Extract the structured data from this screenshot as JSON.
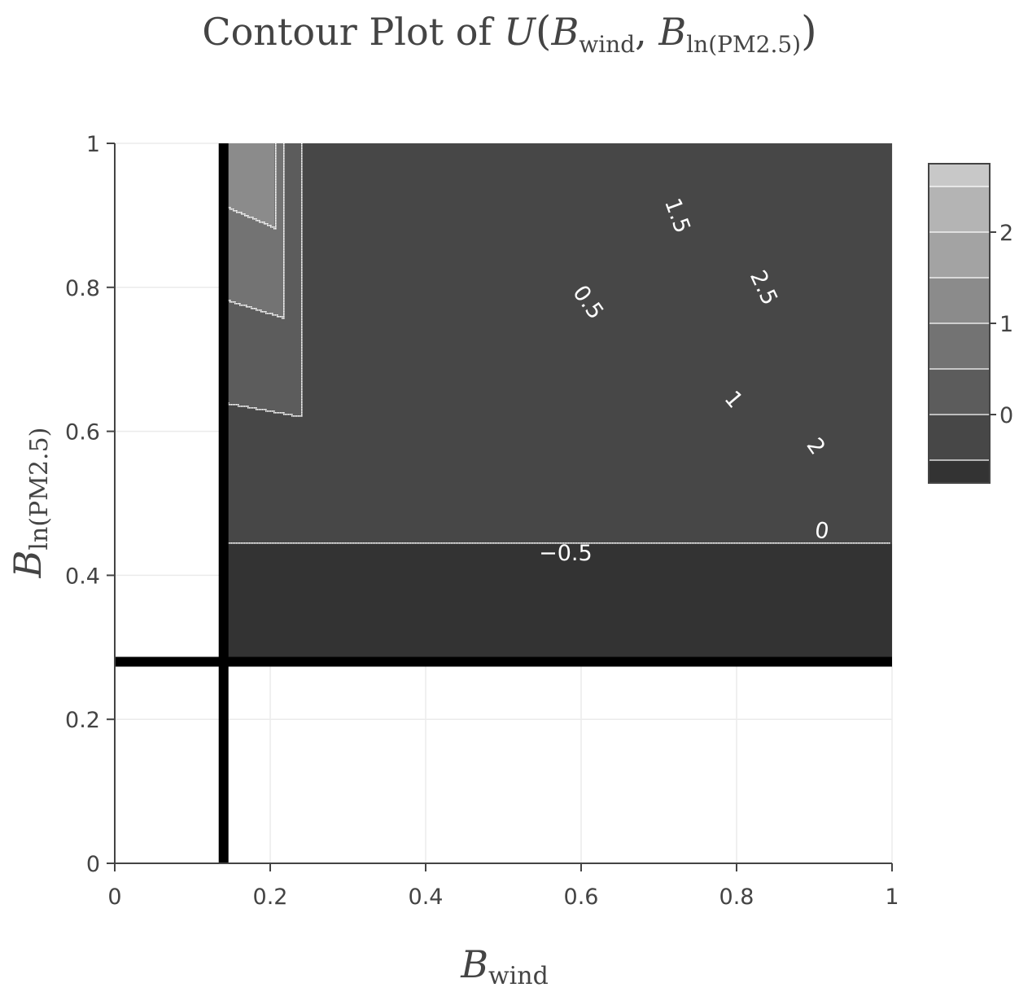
{
  "chart_data": {
    "type": "contour",
    "title": {
      "prefix": "Contour Plot of ",
      "func": "U",
      "var1_base": "B",
      "var1_sub": "wind",
      "var2_base": "B",
      "var2_sub": "ln(PM2.5)"
    },
    "xlabel": {
      "base": "B",
      "sub": "wind"
    },
    "ylabel": {
      "base": "B",
      "sub": "ln(PM2.5)"
    },
    "xlim": [
      0,
      1
    ],
    "ylim": [
      0,
      1
    ],
    "x_ticks": [
      0,
      0.2,
      0.4,
      0.6,
      0.8,
      1
    ],
    "x_tick_labels": [
      "0",
      "0.2",
      "0.4",
      "0.6",
      "0.8",
      "1"
    ],
    "y_ticks": [
      0,
      0.2,
      0.4,
      0.6,
      0.8,
      1
    ],
    "y_tick_labels": [
      "0",
      "0.2",
      "0.4",
      "0.6",
      "0.8",
      "1"
    ],
    "grid": true,
    "contour_region": {
      "x_min": 0.14,
      "y_min": 0.28,
      "x_max": 1,
      "y_max": 1
    },
    "contour_levels": [
      -0.5,
      0,
      0.5,
      1,
      1.5,
      2,
      2.5
    ],
    "contour_labels": [
      {
        "text": "−0.5",
        "level": -0.5,
        "at": [
          0.58,
          0.432
        ]
      },
      {
        "text": "0",
        "level": 0,
        "at": [
          0.91,
          0.463
        ]
      },
      {
        "text": "0.5",
        "level": 0.5,
        "at": [
          0.61,
          0.78
        ]
      },
      {
        "text": "1",
        "level": 1,
        "at": [
          0.797,
          0.645
        ]
      },
      {
        "text": "1.5",
        "level": 1.5,
        "at": [
          0.725,
          0.9
        ]
      },
      {
        "text": "2",
        "level": 2,
        "at": [
          0.903,
          0.58
        ]
      },
      {
        "text": "2.5",
        "level": 2.5,
        "at": [
          0.836,
          0.8
        ]
      }
    ],
    "fill_colors": [
      "#333333",
      "#474747",
      "#5c5c5c",
      "#737373",
      "#8b8b8b",
      "#a3a3a3",
      "#b4b4b4",
      "#c8c8c8"
    ],
    "reference_lines": [
      {
        "orientation": "vertical",
        "value": 0.14
      },
      {
        "orientation": "horizontal",
        "value": 0.28
      }
    ],
    "colorbar": {
      "tick_values": [
        0,
        1,
        2
      ],
      "tick_labels": [
        "0",
        "1",
        "2"
      ],
      "range": [
        -0.75,
        2.75
      ],
      "segment_edges": [
        -0.75,
        -0.5,
        0,
        0.5,
        1,
        1.5,
        2,
        2.5,
        2.75
      ],
      "segment_colors": [
        "#333333",
        "#474747",
        "#5c5c5c",
        "#737373",
        "#8b8b8b",
        "#a3a3a3",
        "#b4b4b4",
        "#c8c8c8"
      ]
    }
  }
}
